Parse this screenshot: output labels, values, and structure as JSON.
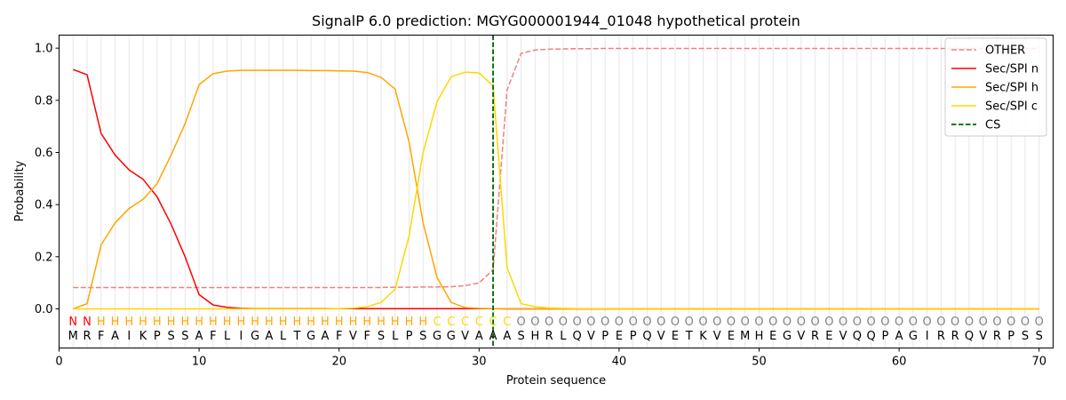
{
  "chart_data": {
    "type": "line",
    "title": "SignalP 6.0 prediction: MGYG000001944_01048 hypothetical protein",
    "xlabel": "Protein sequence",
    "ylabel": "Probability",
    "xlim": [
      0,
      71
    ],
    "ylim": [
      -0.15,
      1.05
    ],
    "xticks": [
      0,
      10,
      20,
      30,
      40,
      50,
      60,
      70
    ],
    "yticks": [
      0.0,
      0.2,
      0.4,
      0.6,
      0.8,
      1.0
    ],
    "ytick_labels": [
      "0.0",
      "0.2",
      "0.4",
      "0.6",
      "0.8",
      "1.0"
    ],
    "legend_position": "top-right",
    "sequence": "MRFAIKPSSAFLIGALTGAFVFSLPSGGVAAASHRLQVPEPQVETKVEMHEGVREVQQPAGIRRQVRPSS",
    "labels": "NNHHHHHHHHHHHHHHHHHHHHHHHHCCCCCCOOOOOOOOOOOOOOOOOOOOOOOOOOOOOOOOOOOOOOO",
    "label_colors": {
      "N": "#ff0000",
      "H": "#ffa500",
      "C": "#ffd700",
      "O": "#808080"
    },
    "cs_position": 31,
    "series": [
      {
        "name": "OTHER",
        "color": "#f08080",
        "dash": true,
        "values": [
          0.082,
          0.082,
          0.082,
          0.082,
          0.082,
          0.082,
          0.082,
          0.082,
          0.082,
          0.082,
          0.082,
          0.082,
          0.082,
          0.082,
          0.082,
          0.082,
          0.082,
          0.082,
          0.082,
          0.082,
          0.082,
          0.082,
          0.082,
          0.083,
          0.083,
          0.084,
          0.084,
          0.085,
          0.089,
          0.1,
          0.15,
          0.84,
          0.98,
          0.993,
          0.996,
          0.997,
          0.998,
          0.998,
          0.999,
          0.999,
          0.999,
          0.999,
          0.999,
          0.999,
          0.999,
          0.999,
          0.999,
          0.999,
          0.999,
          0.999,
          0.999,
          0.999,
          0.999,
          0.999,
          0.999,
          0.999,
          0.999,
          0.999,
          0.999,
          0.999,
          0.999,
          0.999,
          0.999,
          0.999,
          0.999,
          0.999,
          0.999,
          0.999,
          0.999,
          0.999
        ]
      },
      {
        "name": "Sec/SPI n",
        "color": "#ff0000",
        "dash": false,
        "values": [
          0.918,
          0.898,
          0.673,
          0.59,
          0.533,
          0.497,
          0.43,
          0.325,
          0.2,
          0.055,
          0.015,
          0.006,
          0.002,
          0.001,
          0.001,
          0.001,
          0.001,
          0.001,
          0.001,
          0.001,
          0.001,
          0.001,
          0.001,
          0.001,
          0.001,
          0.001,
          0.001,
          0.001,
          0.001,
          0.001,
          0.001,
          0.0,
          0.0,
          0.0,
          0.0,
          0.0,
          0.0,
          0.0,
          0.0,
          0.0,
          0.0,
          0.0,
          0.0,
          0.0,
          0.0,
          0.0,
          0.0,
          0.0,
          0.0,
          0.0,
          0.0,
          0.0,
          0.0,
          0.0,
          0.0,
          0.0,
          0.0,
          0.0,
          0.0,
          0.0,
          0.0,
          0.0,
          0.0,
          0.0,
          0.0,
          0.0,
          0.0,
          0.0,
          0.0,
          0.0
        ]
      },
      {
        "name": "Sec/SPI h",
        "color": "#ffa500",
        "dash": false,
        "values": [
          0.0,
          0.02,
          0.245,
          0.33,
          0.385,
          0.42,
          0.48,
          0.59,
          0.71,
          0.86,
          0.902,
          0.912,
          0.915,
          0.915,
          0.915,
          0.915,
          0.915,
          0.914,
          0.914,
          0.913,
          0.912,
          0.907,
          0.888,
          0.843,
          0.64,
          0.33,
          0.12,
          0.025,
          0.005,
          0.002,
          0.001,
          0.001,
          0.0,
          0.0,
          0.0,
          0.0,
          0.0,
          0.0,
          0.0,
          0.0,
          0.0,
          0.0,
          0.0,
          0.0,
          0.0,
          0.0,
          0.0,
          0.0,
          0.0,
          0.0,
          0.0,
          0.0,
          0.0,
          0.0,
          0.0,
          0.0,
          0.0,
          0.0,
          0.0,
          0.0,
          0.0,
          0.0,
          0.0,
          0.0,
          0.0,
          0.0,
          0.0,
          0.0,
          0.0,
          0.0
        ]
      },
      {
        "name": "Sec/SPI c",
        "color": "#ffd700",
        "dash": false,
        "values": [
          0.0,
          0.0,
          0.0,
          0.0,
          0.0,
          0.0,
          0.0,
          0.0,
          0.0,
          0.0,
          0.0,
          0.0,
          0.0,
          0.0,
          0.0,
          0.0,
          0.0,
          0.0,
          0.0,
          0.001,
          0.003,
          0.008,
          0.025,
          0.075,
          0.28,
          0.6,
          0.795,
          0.89,
          0.908,
          0.905,
          0.855,
          0.158,
          0.02,
          0.008,
          0.004,
          0.002,
          0.001,
          0.001,
          0.001,
          0.0,
          0.0,
          0.0,
          0.0,
          0.0,
          0.0,
          0.0,
          0.0,
          0.0,
          0.0,
          0.0,
          0.0,
          0.0,
          0.0,
          0.0,
          0.0,
          0.0,
          0.0,
          0.0,
          0.0,
          0.0,
          0.0,
          0.0,
          0.0,
          0.0,
          0.0,
          0.0,
          0.0,
          0.0,
          0.0,
          0.0
        ]
      }
    ],
    "legend_entries": [
      "OTHER",
      "Sec/SPI n",
      "Sec/SPI h",
      "Sec/SPI c",
      "CS"
    ],
    "cs_color": "#006400"
  }
}
